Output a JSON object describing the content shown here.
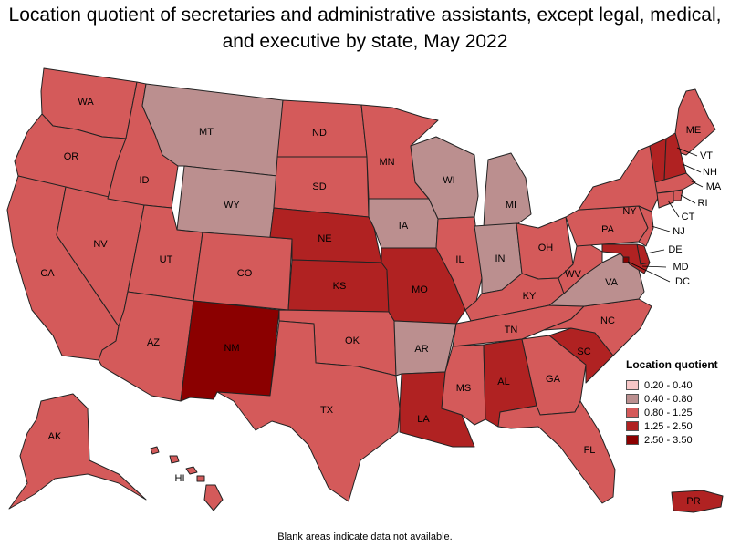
{
  "title": "Location quotient of secretaries and administrative assistants, except legal, medical, and executive by state, May 2022",
  "footnote": "Blank areas indicate data not available.",
  "legend": {
    "title": "Location quotient",
    "items": [
      {
        "label": "0.20 - 0.40",
        "color": "#f7c7c7"
      },
      {
        "label": "0.40 - 0.80",
        "color": "#bb8f8f"
      },
      {
        "label": "0.80 - 1.25",
        "color": "#d45a5a"
      },
      {
        "label": "1.25 - 2.50",
        "color": "#b02222"
      },
      {
        "label": "2.50 - 3.50",
        "color": "#8b0000"
      }
    ]
  },
  "states": [
    {
      "abbr": "WA",
      "class": "0.80 - 1.25"
    },
    {
      "abbr": "OR",
      "class": "0.80 - 1.25"
    },
    {
      "abbr": "CA",
      "class": "0.80 - 1.25"
    },
    {
      "abbr": "NV",
      "class": "0.80 - 1.25"
    },
    {
      "abbr": "ID",
      "class": "0.80 - 1.25"
    },
    {
      "abbr": "MT",
      "class": "0.40 - 0.80"
    },
    {
      "abbr": "WY",
      "class": "0.40 - 0.80"
    },
    {
      "abbr": "UT",
      "class": "0.80 - 1.25"
    },
    {
      "abbr": "AZ",
      "class": "0.80 - 1.25"
    },
    {
      "abbr": "CO",
      "class": "0.80 - 1.25"
    },
    {
      "abbr": "NM",
      "class": "2.50 - 3.50"
    },
    {
      "abbr": "ND",
      "class": "0.80 - 1.25"
    },
    {
      "abbr": "SD",
      "class": "0.80 - 1.25"
    },
    {
      "abbr": "NE",
      "class": "1.25 - 2.50"
    },
    {
      "abbr": "KS",
      "class": "1.25 - 2.50"
    },
    {
      "abbr": "OK",
      "class": "0.80 - 1.25"
    },
    {
      "abbr": "TX",
      "class": "0.80 - 1.25"
    },
    {
      "abbr": "MN",
      "class": "0.80 - 1.25"
    },
    {
      "abbr": "IA",
      "class": "0.40 - 0.80"
    },
    {
      "abbr": "MO",
      "class": "1.25 - 2.50"
    },
    {
      "abbr": "AR",
      "class": "0.40 - 0.80"
    },
    {
      "abbr": "LA",
      "class": "1.25 - 2.50"
    },
    {
      "abbr": "WI",
      "class": "0.40 - 0.80"
    },
    {
      "abbr": "IL",
      "class": "0.80 - 1.25"
    },
    {
      "abbr": "MI",
      "class": "0.40 - 0.80"
    },
    {
      "abbr": "IN",
      "class": "0.40 - 0.80"
    },
    {
      "abbr": "OH",
      "class": "0.80 - 1.25"
    },
    {
      "abbr": "KY",
      "class": "0.80 - 1.25"
    },
    {
      "abbr": "TN",
      "class": "0.80 - 1.25"
    },
    {
      "abbr": "MS",
      "class": "0.80 - 1.25"
    },
    {
      "abbr": "AL",
      "class": "1.25 - 2.50"
    },
    {
      "abbr": "GA",
      "class": "0.80 - 1.25"
    },
    {
      "abbr": "FL",
      "class": "0.80 - 1.25"
    },
    {
      "abbr": "SC",
      "class": "1.25 - 2.50"
    },
    {
      "abbr": "NC",
      "class": "0.80 - 1.25"
    },
    {
      "abbr": "VA",
      "class": "0.40 - 0.80"
    },
    {
      "abbr": "WV",
      "class": "0.80 - 1.25"
    },
    {
      "abbr": "PA",
      "class": "0.80 - 1.25"
    },
    {
      "abbr": "NY",
      "class": "0.80 - 1.25"
    },
    {
      "abbr": "ME",
      "class": "0.80 - 1.25"
    },
    {
      "abbr": "VT",
      "class": "1.25 - 2.50"
    },
    {
      "abbr": "NH",
      "class": "1.25 - 2.50"
    },
    {
      "abbr": "MA",
      "class": "0.80 - 1.25"
    },
    {
      "abbr": "RI",
      "class": "0.80 - 1.25"
    },
    {
      "abbr": "CT",
      "class": "0.80 - 1.25"
    },
    {
      "abbr": "NJ",
      "class": "0.80 - 1.25"
    },
    {
      "abbr": "DE",
      "class": "1.25 - 2.50"
    },
    {
      "abbr": "MD",
      "class": "1.25 - 2.50"
    },
    {
      "abbr": "DC",
      "class": "2.50 - 3.50"
    },
    {
      "abbr": "AK",
      "class": "0.80 - 1.25"
    },
    {
      "abbr": "HI",
      "class": "0.80 - 1.25"
    },
    {
      "abbr": "PR",
      "class": "1.25 - 2.50"
    }
  ]
}
